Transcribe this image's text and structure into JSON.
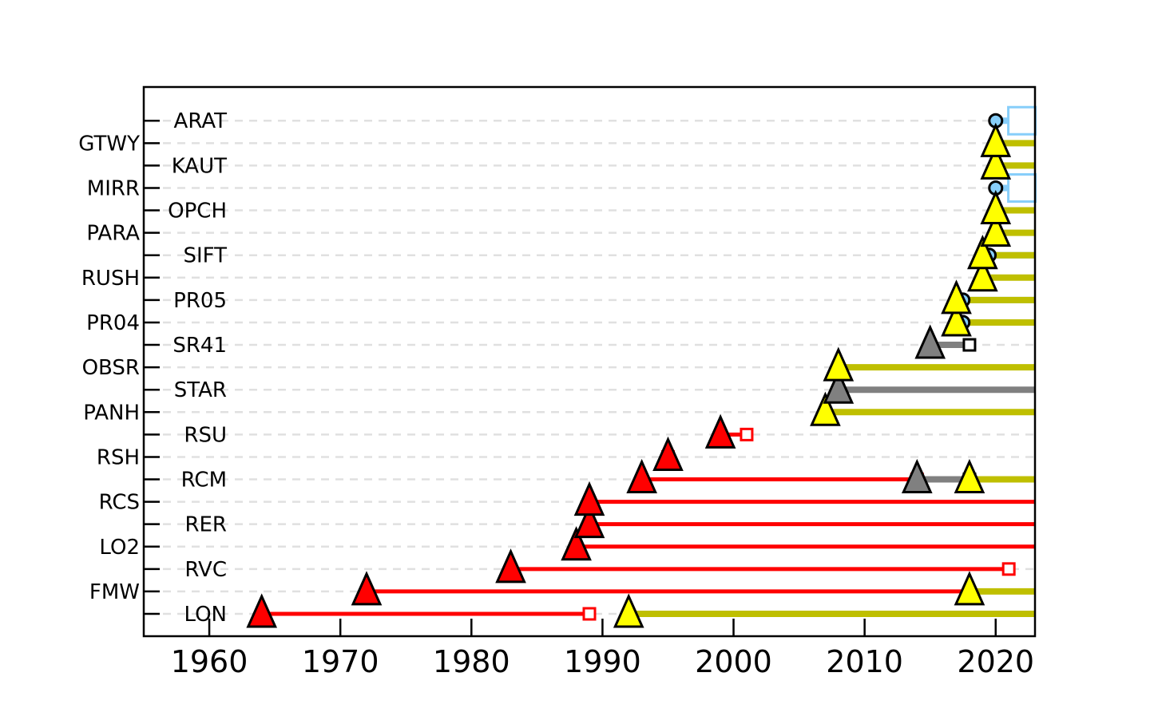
{
  "chart_data": {
    "type": "timeline",
    "xlim": [
      1955,
      2023
    ],
    "x_ticks": [
      1960,
      1970,
      1980,
      1990,
      2000,
      2010,
      2020
    ],
    "x_tick_labels": [
      "1960",
      "1970",
      "1980",
      "1990",
      "2000",
      "2010",
      "2020"
    ],
    "grid": "horizontal dashed per station",
    "stations": [
      "LON",
      "FMW",
      "RVC",
      "LO2",
      "RER",
      "RCS",
      "RCM",
      "RSH",
      "RSU",
      "PANH",
      "STAR",
      "OBSR",
      "SR41",
      "PR04",
      "PR05",
      "RUSH",
      "SIFT",
      "PARA",
      "OPCH",
      "MIRR",
      "KAUT",
      "GTWY",
      "ARAT"
    ],
    "colors": {
      "red": "#ff0000",
      "yellow": "#ffff00",
      "olive": "#bfbf00",
      "gray": "#808080",
      "lightblue": "#87cefa",
      "grid": "#e0e0e0"
    },
    "segments": [
      {
        "station": "LON",
        "start": 1964,
        "end": 1989,
        "color": "red",
        "start_marker": "triangle",
        "end_marker": "square"
      },
      {
        "station": "LON",
        "start": 1992,
        "end": 2023,
        "color": "yellow",
        "start_marker": "triangle"
      },
      {
        "station": "FMW",
        "start": 1972,
        "end": 2018,
        "color": "red",
        "start_marker": "triangle"
      },
      {
        "station": "FMW",
        "start": 2018,
        "end": 2023,
        "color": "yellow",
        "start_marker": "triangle"
      },
      {
        "station": "RVC",
        "start": 1983,
        "end": 2021,
        "color": "red",
        "start_marker": "triangle",
        "end_marker": "square"
      },
      {
        "station": "LO2",
        "start": 1988,
        "end": 2023,
        "color": "red",
        "start_marker": "triangle"
      },
      {
        "station": "RER",
        "start": 1989,
        "end": 2023,
        "color": "red",
        "start_marker": "triangle"
      },
      {
        "station": "RCS",
        "start": 1989,
        "end": 2023,
        "color": "red",
        "start_marker": "triangle"
      },
      {
        "station": "RCM",
        "start": 1993,
        "end": 2014,
        "color": "red",
        "start_marker": "triangle",
        "end_marker": "square"
      },
      {
        "station": "RCM",
        "start": 2014,
        "end": 2018,
        "color": "gray",
        "start_marker": "triangle",
        "end_marker": "square"
      },
      {
        "station": "RCM",
        "start": 2018,
        "end": 2023,
        "color": "yellow",
        "start_marker": "triangle"
      },
      {
        "station": "RSH",
        "start": 1995,
        "end": 1995,
        "color": "red",
        "start_marker": "triangle",
        "end_marker": "square"
      },
      {
        "station": "RSU",
        "start": 1999,
        "end": 2001,
        "color": "red",
        "start_marker": "triangle",
        "end_marker": "square"
      },
      {
        "station": "PANH",
        "start": 2007,
        "end": 2023,
        "color": "yellow",
        "start_marker": "triangle"
      },
      {
        "station": "STAR",
        "start": 2008,
        "end": 2023,
        "color": "gray",
        "start_marker": "triangle"
      },
      {
        "station": "OBSR",
        "start": 2008,
        "end": 2023,
        "color": "yellow",
        "start_marker": "triangle"
      },
      {
        "station": "SR41",
        "start": 2015,
        "end": 2018,
        "color": "gray",
        "start_marker": "triangle",
        "end_marker": "square"
      },
      {
        "station": "PR04",
        "start": 2017.5,
        "end": 2023,
        "color": "lightblue",
        "start_marker": "circle"
      },
      {
        "station": "PR04",
        "start": 2017,
        "end": 2023,
        "color": "yellow",
        "start_marker": "triangle"
      },
      {
        "station": "PR05",
        "start": 2017.5,
        "end": 2023,
        "color": "lightblue",
        "start_marker": "circle"
      },
      {
        "station": "PR05",
        "start": 2017,
        "end": 2023,
        "color": "yellow",
        "start_marker": "triangle"
      },
      {
        "station": "RUSH",
        "start": 2019,
        "end": 2023,
        "color": "yellow",
        "start_marker": "triangle"
      },
      {
        "station": "SIFT",
        "start": 2019.5,
        "end": 2023,
        "color": "lightblue",
        "start_marker": "circle"
      },
      {
        "station": "SIFT",
        "start": 2019,
        "end": 2023,
        "color": "yellow",
        "start_marker": "triangle"
      },
      {
        "station": "PARA",
        "start": 2020,
        "end": 2023,
        "color": "yellow",
        "start_marker": "triangle"
      },
      {
        "station": "OPCH",
        "start": 2020,
        "end": 2023,
        "color": "yellow",
        "start_marker": "triangle"
      },
      {
        "station": "MIRR",
        "start": 2020,
        "end": 2022,
        "color": "lightblue",
        "start_marker": "circle",
        "end_marker": "square"
      },
      {
        "station": "KAUT",
        "start": 2020,
        "end": 2023,
        "color": "yellow",
        "start_marker": "triangle"
      },
      {
        "station": "GTWY",
        "start": 2020,
        "end": 2023,
        "color": "yellow",
        "start_marker": "triangle"
      },
      {
        "station": "ARAT",
        "start": 2020,
        "end": 2022,
        "color": "lightblue",
        "start_marker": "circle",
        "end_marker": "square"
      }
    ]
  }
}
